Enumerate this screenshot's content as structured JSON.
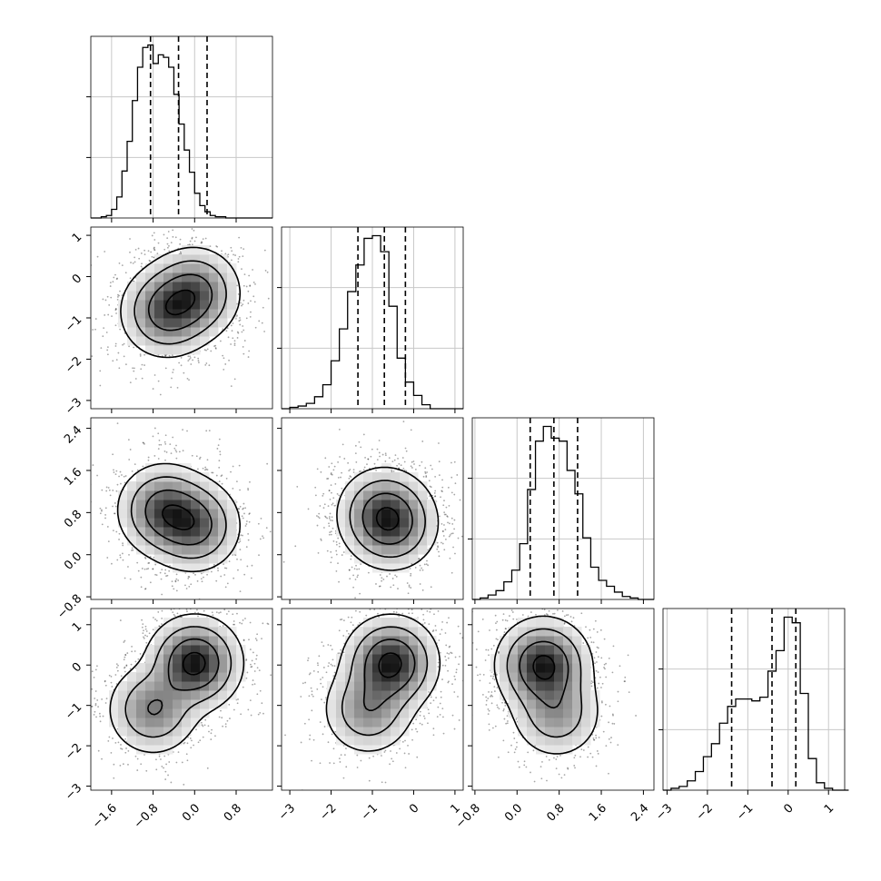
{
  "chart_data": {
    "type": "corner",
    "grid": true,
    "params": [
      {
        "range": [
          -2.0,
          1.5
        ],
        "ticks": [
          -1.6,
          -0.8,
          0.0,
          0.8
        ],
        "tick_labels": [
          "−1.6",
          "−0.8",
          "0.0",
          "0.8"
        ],
        "quantiles": [
          -0.85,
          -0.31,
          0.24
        ],
        "hist": {
          "bin_start": -2.0,
          "bin_width": 0.1,
          "counts": [
            0,
            0,
            1,
            2,
            7,
            17,
            38,
            62,
            95,
            122,
            138,
            140,
            125,
            132,
            130,
            122,
            100,
            76,
            55,
            37,
            20,
            10,
            5,
            2,
            1,
            1,
            0,
            0,
            0,
            0,
            0,
            0,
            0,
            0,
            0
          ]
        }
      },
      {
        "range": [
          -3.2,
          1.2
        ],
        "ticks": [
          -3,
          -2,
          -1,
          0,
          1
        ],
        "tick_labels": [
          "−3",
          "−2",
          "−1",
          "0",
          "1"
        ],
        "quantiles": [
          -1.35,
          -0.71,
          -0.2
        ],
        "hist": {
          "bin_start": -3.2,
          "bin_width": 0.2,
          "counts": [
            0,
            1,
            2,
            4,
            9,
            18,
            36,
            60,
            88,
            108,
            128,
            130,
            118,
            77,
            38,
            20,
            10,
            3,
            0,
            0,
            0,
            0
          ]
        }
      },
      {
        "range": [
          -0.85,
          2.6
        ],
        "ticks": [
          -0.8,
          0.0,
          0.8,
          1.6,
          2.4
        ],
        "tick_labels": [
          "−0.8",
          "0.0",
          "0.8",
          "1.6",
          "2.4"
        ],
        "quantiles": [
          0.25,
          0.7,
          1.15
        ],
        "hist": {
          "bin_start": -0.85,
          "bin_width": 0.15,
          "counts": [
            0,
            1,
            3,
            6,
            12,
            20,
            38,
            75,
            108,
            118,
            110,
            108,
            88,
            72,
            42,
            22,
            13,
            9,
            5,
            2,
            1,
            0,
            0
          ]
        }
      },
      {
        "range": [
          -3.1,
          1.4
        ],
        "ticks": [
          -3,
          -2,
          -1,
          0,
          1
        ],
        "tick_labels": [
          "−3",
          "−2",
          "−1",
          "0",
          "1"
        ],
        "quantiles": [
          -1.4,
          -0.4,
          0.19
        ],
        "hist": {
          "bin_start": -3.1,
          "bin_width": 0.2,
          "counts": [
            0,
            1,
            2,
            5,
            10,
            18,
            25,
            36,
            45,
            49,
            49,
            48,
            50,
            64,
            75,
            93,
            90,
            52,
            17,
            4,
            1,
            0,
            0
          ]
        }
      }
    ],
    "pairs": [
      {
        "row": 1,
        "col": 0,
        "peaks": [
          {
            "x": -0.55,
            "y": -0.85,
            "w": 1.0
          },
          {
            "x": 0.0,
            "y": -0.4,
            "w": 1.0
          }
        ],
        "contour_levels": [
          0.9,
          0.55,
          0.25,
          0.08
        ]
      },
      {
        "row": 2,
        "col": 0,
        "peaks": [
          {
            "x": -0.6,
            "y": 0.85,
            "w": 1.0
          },
          {
            "x": 0.0,
            "y": 0.55,
            "w": 0.95
          }
        ],
        "contour_levels": [
          0.9,
          0.55,
          0.25,
          0.08
        ]
      },
      {
        "row": 2,
        "col": 1,
        "peaks": [
          {
            "x": -0.75,
            "y": 0.8,
            "w": 1.0
          },
          {
            "x": -0.5,
            "y": 0.55,
            "w": 0.9
          }
        ],
        "contour_levels": [
          0.9,
          0.55,
          0.25,
          0.08
        ]
      },
      {
        "row": 3,
        "col": 0,
        "peaks": [
          {
            "x": -0.8,
            "y": -1.1,
            "w": 0.55
          },
          {
            "x": 0.0,
            "y": 0.05,
            "w": 1.0
          }
        ],
        "contour_levels": [
          0.9,
          0.55,
          0.25,
          0.08
        ]
      },
      {
        "row": 3,
        "col": 1,
        "peaks": [
          {
            "x": -1.1,
            "y": -1.1,
            "w": 0.5
          },
          {
            "x": -0.55,
            "y": 0.05,
            "w": 1.0
          }
        ],
        "contour_levels": [
          0.9,
          0.55,
          0.25,
          0.08
        ]
      },
      {
        "row": 3,
        "col": 2,
        "peaks": [
          {
            "x": 0.5,
            "y": 0.0,
            "w": 1.0
          },
          {
            "x": 0.75,
            "y": -1.2,
            "w": 0.45
          }
        ],
        "contour_levels": [
          0.9,
          0.55,
          0.25,
          0.08
        ]
      }
    ]
  }
}
